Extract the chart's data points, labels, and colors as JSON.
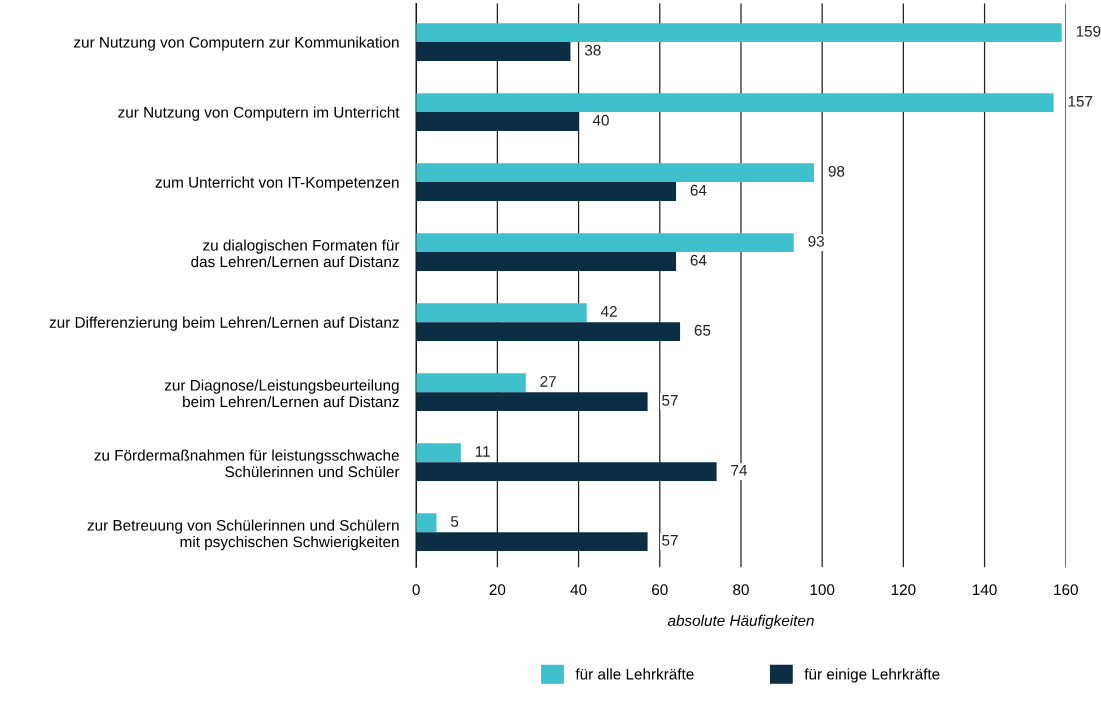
{
  "chart_data": {
    "type": "bar",
    "orientation": "horizontal",
    "categories": [
      "zur Nutzung von Computern zur Kommunikation",
      "zur Nutzung von Computern im Unterricht",
      "zum Unterricht von IT-Kompetenzen",
      "zu dialogischen Formaten für\ndas Lehren/Lernen auf Distanz",
      "zur Differenzierung beim Lehren/Lernen auf Distanz",
      "zur Diagnose/Leistungsbeurteilung\nbeim Lehren/Lernen auf Distanz",
      "zu Fördermaßnahmen für leistungsschwache\nSchülerinnen und Schüler",
      "zur Betreuung von Schülerinnen und Schülern\nmit psychischen Schwierigkeiten"
    ],
    "series": [
      {
        "name": "für alle Lehrkräfte",
        "color": "#3ec1cd",
        "values": [
          159,
          157,
          98,
          93,
          42,
          27,
          11,
          5
        ]
      },
      {
        "name": "für einige Lehrkräfte",
        "color": "#0b2e45",
        "values": [
          38,
          40,
          64,
          64,
          65,
          57,
          74,
          57
        ]
      }
    ],
    "xlabel": "absolute Häufigkeiten",
    "xlim": [
      0,
      160
    ],
    "xticks": [
      0,
      20,
      40,
      60,
      80,
      100,
      120,
      140,
      160
    ],
    "grid": "x",
    "legend": "bottom",
    "data_labels": true
  }
}
